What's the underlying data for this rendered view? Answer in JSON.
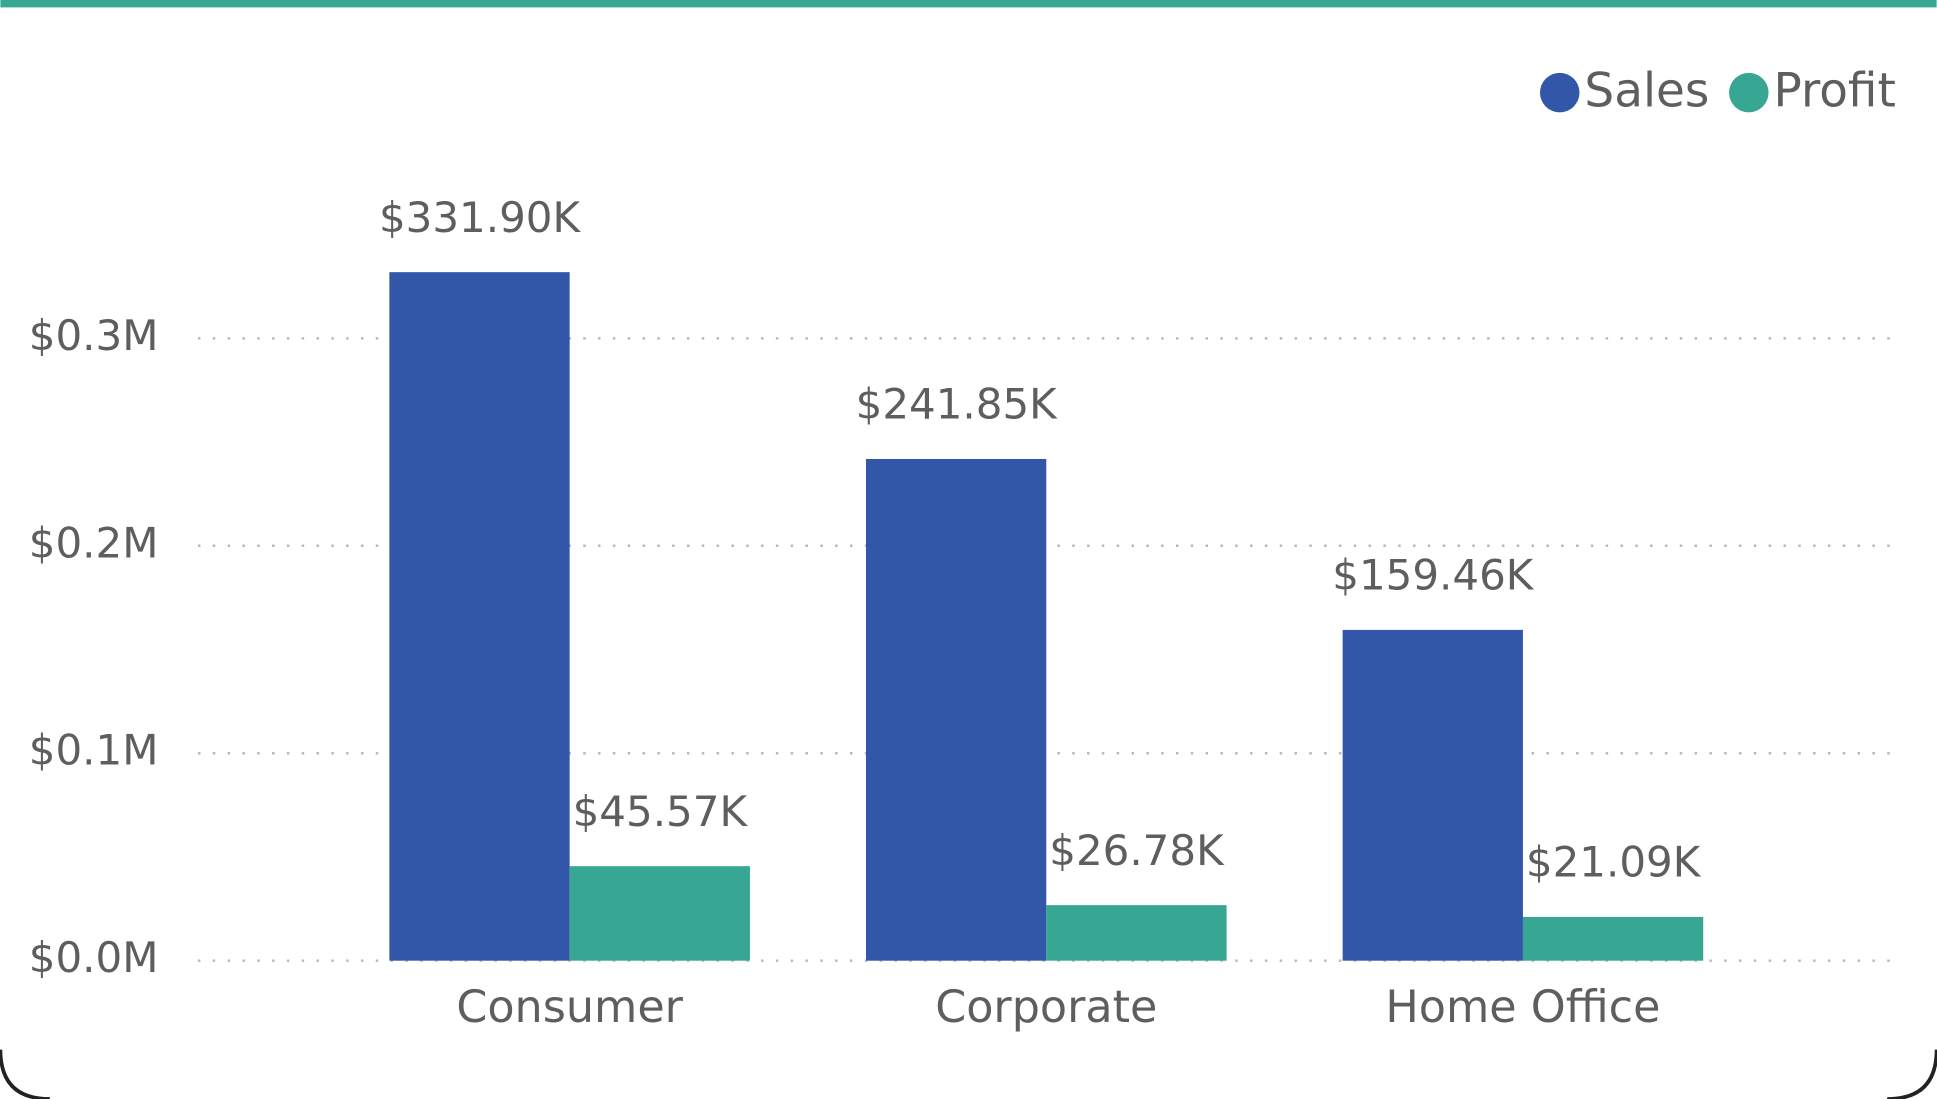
{
  "chart_data": {
    "type": "bar",
    "categories": [
      "Consumer",
      "Corporate",
      "Home Office"
    ],
    "series": [
      {
        "name": "Sales",
        "color": "#3257a8",
        "values": [
          331900,
          241850,
          159460
        ],
        "value_labels": [
          "$331.90K",
          "$241.85K",
          "$159.46K"
        ]
      },
      {
        "name": "Profit",
        "color": "#37a794",
        "values": [
          45570,
          26780,
          21090
        ],
        "value_labels": [
          "$45.57K",
          "$26.78K",
          "$21.09K"
        ]
      }
    ],
    "ylim": [
      0,
      350000
    ],
    "yticks": [
      {
        "value": 0,
        "label": "$0.0M"
      },
      {
        "value": 100000,
        "label": "$0.1M"
      },
      {
        "value": 200000,
        "label": "$0.2M"
      },
      {
        "value": 300000,
        "label": "$0.3M"
      }
    ],
    "grid": true,
    "legend": "top-right"
  }
}
